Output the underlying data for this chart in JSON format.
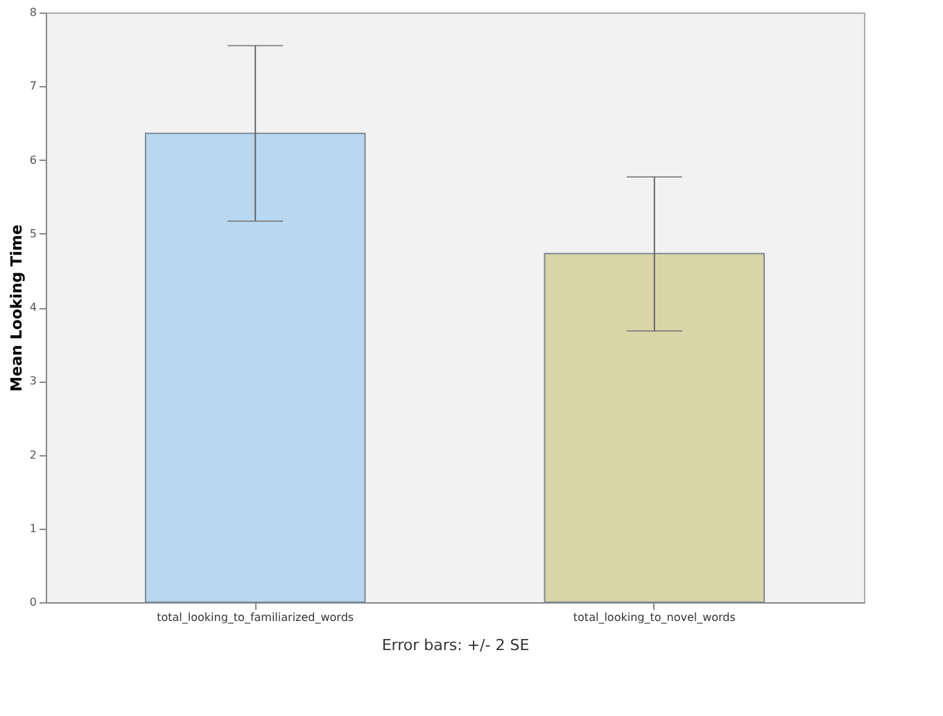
{
  "chart_data": {
    "type": "bar",
    "ylabel": "Mean Looking Time",
    "categories": [
      "total_looking_to_familiarized_words",
      "total_looking_to_novel_words"
    ],
    "values": [
      6.36,
      4.73
    ],
    "colors": [
      "#b9d8f0",
      "#dad5a7"
    ],
    "errors": [
      [
        5.17,
        7.55
      ],
      [
        3.68,
        5.77
      ]
    ],
    "ylim": [
      0,
      8
    ],
    "yticks": [
      0,
      1,
      2,
      3,
      4,
      5,
      6,
      7,
      8
    ],
    "grid": false,
    "annotations": [
      "Error bars: +/- 2 SE"
    ]
  }
}
